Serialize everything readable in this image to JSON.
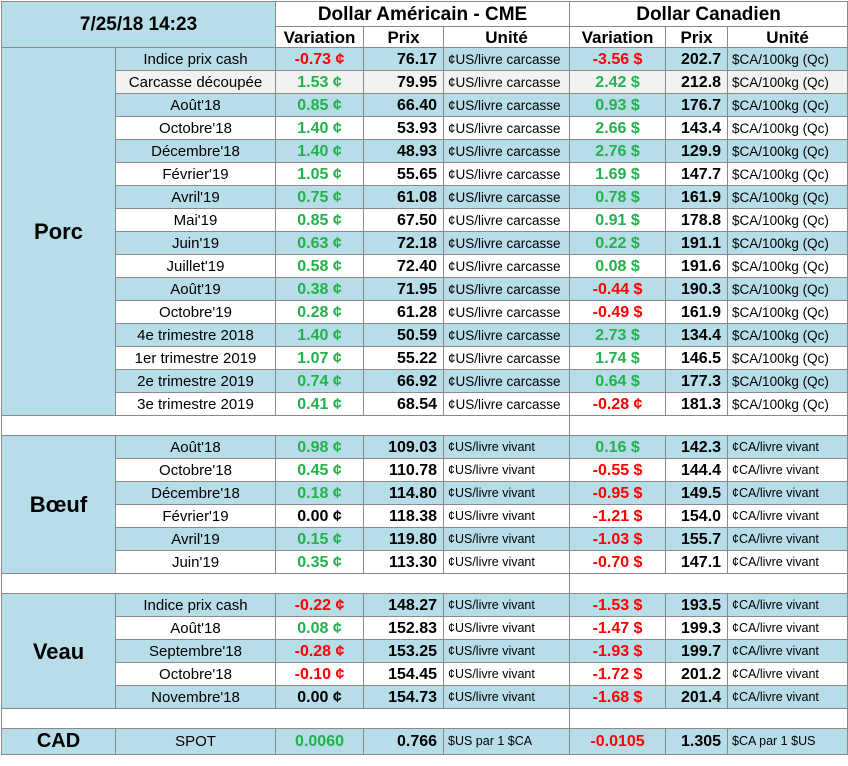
{
  "header": {
    "timestamp": "7/25/18 14:23",
    "group_usd": "Dollar Américain - CME",
    "group_cad": "Dollar Canadien",
    "col_variation": "Variation",
    "col_prix": "Prix",
    "col_unite": "Unité"
  },
  "sections": {
    "porc": {
      "name": "Porc",
      "rows": [
        {
          "label": "Indice prix cash",
          "usd_var": "-0.73 ¢",
          "usd_price": "76.17",
          "usd_unit": "¢US/livre carcasse",
          "cad_var": "-3.56 $",
          "cad_price": "202.7",
          "cad_unit": "$CA/100kg (Qc)"
        },
        {
          "label": "Carcasse découpée",
          "usd_var": "1.53 ¢",
          "usd_price": "79.95",
          "usd_unit": "¢US/livre carcasse",
          "cad_var": "2.42 $",
          "cad_price": "212.8",
          "cad_unit": "$CA/100kg (Qc)"
        },
        {
          "label": "Août'18",
          "usd_var": "0.85 ¢",
          "usd_price": "66.40",
          "usd_unit": "¢US/livre carcasse",
          "cad_var": "0.93 $",
          "cad_price": "176.7",
          "cad_unit": "$CA/100kg (Qc)"
        },
        {
          "label": "Octobre'18",
          "usd_var": "1.40 ¢",
          "usd_price": "53.93",
          "usd_unit": "¢US/livre carcasse",
          "cad_var": "2.66 $",
          "cad_price": "143.4",
          "cad_unit": "$CA/100kg (Qc)"
        },
        {
          "label": "Décembre'18",
          "usd_var": "1.40 ¢",
          "usd_price": "48.93",
          "usd_unit": "¢US/livre carcasse",
          "cad_var": "2.76 $",
          "cad_price": "129.9",
          "cad_unit": "$CA/100kg (Qc)"
        },
        {
          "label": "Février'19",
          "usd_var": "1.05 ¢",
          "usd_price": "55.65",
          "usd_unit": "¢US/livre carcasse",
          "cad_var": "1.69 $",
          "cad_price": "147.7",
          "cad_unit": "$CA/100kg (Qc)"
        },
        {
          "label": "Avril'19",
          "usd_var": "0.75 ¢",
          "usd_price": "61.08",
          "usd_unit": "¢US/livre carcasse",
          "cad_var": "0.78 $",
          "cad_price": "161.9",
          "cad_unit": "$CA/100kg (Qc)"
        },
        {
          "label": "Mai'19",
          "usd_var": "0.85 ¢",
          "usd_price": "67.50",
          "usd_unit": "¢US/livre carcasse",
          "cad_var": "0.91 $",
          "cad_price": "178.8",
          "cad_unit": "$CA/100kg (Qc)"
        },
        {
          "label": "Juin'19",
          "usd_var": "0.63 ¢",
          "usd_price": "72.18",
          "usd_unit": "¢US/livre carcasse",
          "cad_var": "0.22 $",
          "cad_price": "191.1",
          "cad_unit": "$CA/100kg (Qc)"
        },
        {
          "label": "Juillet'19",
          "usd_var": "0.58 ¢",
          "usd_price": "72.40",
          "usd_unit": "¢US/livre carcasse",
          "cad_var": "0.08 $",
          "cad_price": "191.6",
          "cad_unit": "$CA/100kg (Qc)"
        },
        {
          "label": "Août'19",
          "usd_var": "0.38 ¢",
          "usd_price": "71.95",
          "usd_unit": "¢US/livre carcasse",
          "cad_var": "-0.44 $",
          "cad_price": "190.3",
          "cad_unit": "$CA/100kg (Qc)"
        },
        {
          "label": "Octobre'19",
          "usd_var": "0.28 ¢",
          "usd_price": "61.28",
          "usd_unit": "¢US/livre carcasse",
          "cad_var": "-0.49 $",
          "cad_price": "161.9",
          "cad_unit": "$CA/100kg (Qc)"
        },
        {
          "label": "4e trimestre 2018",
          "usd_var": "1.40 ¢",
          "usd_price": "50.59",
          "usd_unit": "¢US/livre carcasse",
          "cad_var": "2.73 $",
          "cad_price": "134.4",
          "cad_unit": "$CA/100kg (Qc)"
        },
        {
          "label": "1er trimestre 2019",
          "usd_var": "1.07 ¢",
          "usd_price": "55.22",
          "usd_unit": "¢US/livre carcasse",
          "cad_var": "1.74 $",
          "cad_price": "146.5",
          "cad_unit": "$CA/100kg (Qc)"
        },
        {
          "label": "2e trimestre 2019",
          "usd_var": "0.74 ¢",
          "usd_price": "66.92",
          "usd_unit": "¢US/livre carcasse",
          "cad_var": "0.64 $",
          "cad_price": "177.3",
          "cad_unit": "$CA/100kg (Qc)"
        },
        {
          "label": "3e trimestre 2019",
          "usd_var": "0.41 ¢",
          "usd_price": "68.54",
          "usd_unit": "¢US/livre carcasse",
          "cad_var": "-0.28 ¢",
          "cad_price": "181.3",
          "cad_unit": "$CA/100kg (Qc)"
        }
      ]
    },
    "boeuf": {
      "name": "Bœuf",
      "rows": [
        {
          "label": "Août'18",
          "usd_var": "0.98 ¢",
          "usd_price": "109.03",
          "usd_unit": "¢US/livre vivant",
          "cad_var": "0.16 $",
          "cad_price": "142.3",
          "cad_unit": "¢CA/livre vivant"
        },
        {
          "label": "Octobre'18",
          "usd_var": "0.45 ¢",
          "usd_price": "110.78",
          "usd_unit": "¢US/livre vivant",
          "cad_var": "-0.55 $",
          "cad_price": "144.4",
          "cad_unit": "¢CA/livre vivant"
        },
        {
          "label": "Décembre'18",
          "usd_var": "0.18 ¢",
          "usd_price": "114.80",
          "usd_unit": "¢US/livre vivant",
          "cad_var": "-0.95 $",
          "cad_price": "149.5",
          "cad_unit": "¢CA/livre vivant"
        },
        {
          "label": "Février'19",
          "usd_var": "0.00 ¢",
          "usd_price": "118.38",
          "usd_unit": "¢US/livre vivant",
          "cad_var": "-1.21 $",
          "cad_price": "154.0",
          "cad_unit": "¢CA/livre vivant"
        },
        {
          "label": "Avril'19",
          "usd_var": "0.15 ¢",
          "usd_price": "119.80",
          "usd_unit": "¢US/livre vivant",
          "cad_var": "-1.03 $",
          "cad_price": "155.7",
          "cad_unit": "¢CA/livre vivant"
        },
        {
          "label": "Juin'19",
          "usd_var": "0.35 ¢",
          "usd_price": "113.30",
          "usd_unit": "¢US/livre vivant",
          "cad_var": "-0.70 $",
          "cad_price": "147.1",
          "cad_unit": "¢CA/livre vivant"
        }
      ]
    },
    "veau": {
      "name": "Veau",
      "rows": [
        {
          "label": "Indice prix cash",
          "usd_var": "-0.22 ¢",
          "usd_price": "148.27",
          "usd_unit": "¢US/livre vivant",
          "cad_var": "-1.53 $",
          "cad_price": "193.5",
          "cad_unit": "¢CA/livre vivant"
        },
        {
          "label": "Août'18",
          "usd_var": "0.08 ¢",
          "usd_price": "152.83",
          "usd_unit": "¢US/livre vivant",
          "cad_var": "-1.47 $",
          "cad_price": "199.3",
          "cad_unit": "¢CA/livre vivant"
        },
        {
          "label": "Septembre'18",
          "usd_var": "-0.28 ¢",
          "usd_price": "153.25",
          "usd_unit": "¢US/livre vivant",
          "cad_var": "-1.93 $",
          "cad_price": "199.7",
          "cad_unit": "¢CA/livre vivant"
        },
        {
          "label": "Octobre'18",
          "usd_var": "-0.10 ¢",
          "usd_price": "154.45",
          "usd_unit": "¢US/livre vivant",
          "cad_var": "-1.72 $",
          "cad_price": "201.2",
          "cad_unit": "¢CA/livre vivant"
        },
        {
          "label": "Novembre'18",
          "usd_var": "0.00 ¢",
          "usd_price": "154.73",
          "usd_unit": "¢US/livre vivant",
          "cad_var": "-1.68 $",
          "cad_price": "201.4",
          "cad_unit": "¢CA/livre vivant"
        }
      ]
    },
    "cad": {
      "name": "CAD",
      "label": "SPOT",
      "usd_var": "0.0060",
      "usd_price": "0.766",
      "usd_unit": "$US par 1 $CA",
      "cad_var": "-0.0105",
      "cad_price": "1.305",
      "cad_unit": "$CA par 1 $US"
    }
  },
  "colors": {
    "positive": "#22b14c",
    "negative": "#ff0000",
    "neutral": "#000000",
    "band": "#b7dde8"
  }
}
